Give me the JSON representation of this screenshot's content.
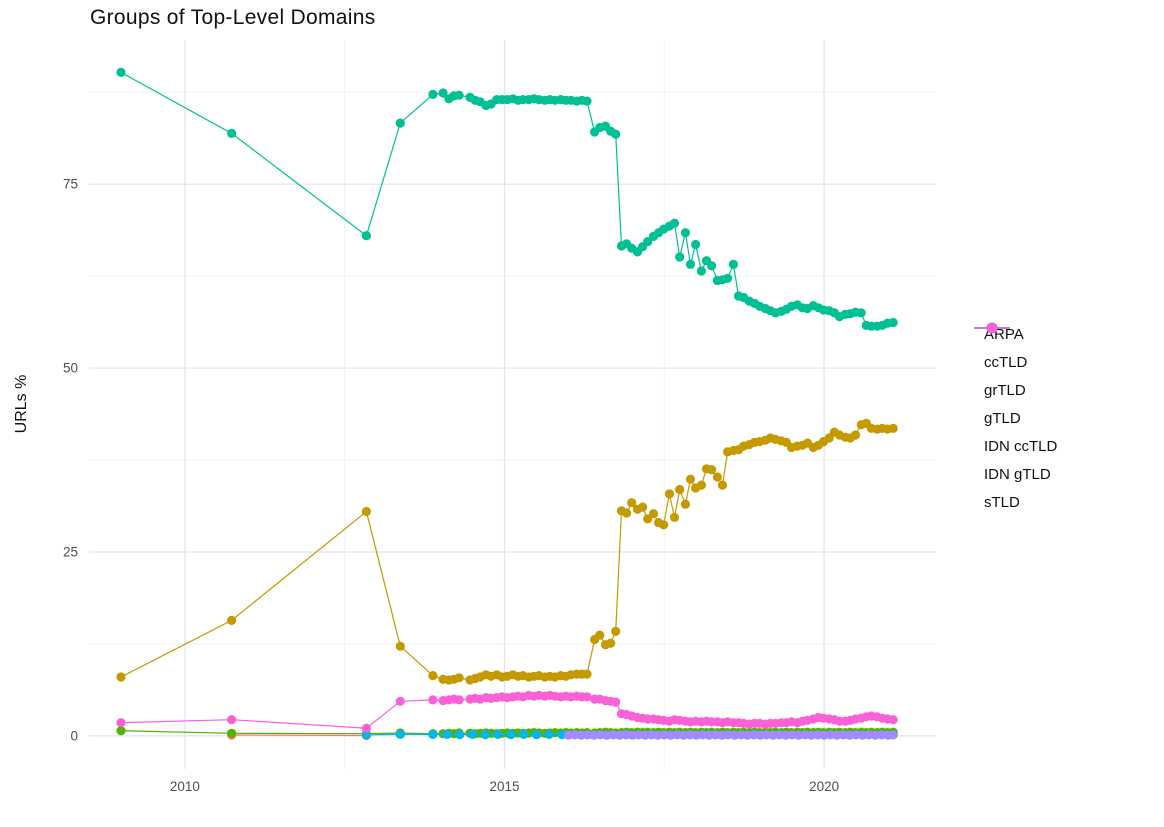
{
  "header": {
    "title": "Groups of Top-Level Domains"
  },
  "chart_data": {
    "type": "line",
    "title": "Groups of Top-Level Domains",
    "xlabel": "",
    "ylabel": "URLs %",
    "xlim": [
      2008.5,
      2021.75
    ],
    "ylim": [
      -4.5,
      94.6
    ],
    "x_ticks": [
      2010,
      2015,
      2020
    ],
    "x_tick_labels": [
      "2010",
      "2015",
      "2020"
    ],
    "x_minor_ticks": [
      2012.5,
      2017.5
    ],
    "y_ticks": [
      0,
      25,
      50,
      75
    ],
    "y_tick_labels": [
      "0",
      "25",
      "50",
      "75"
    ],
    "y_minor_ticks": [
      12.5,
      37.5,
      62.5,
      87.5
    ],
    "grid": "on",
    "legend_position": "right",
    "series": [
      {
        "name": "ARPA",
        "color": "#F8766D",
        "x": [
          2010.73,
          2012.84
        ],
        "y": [
          0.12,
          0.05
        ]
      },
      {
        "name": "ccTLD",
        "color": "#C49A00",
        "x": [
          2009,
          2010.73,
          2012.84,
          2013.37,
          2013.88,
          2014.04,
          2014.13,
          2014.21,
          2014.29,
          2014.46,
          2014.54,
          2014.62,
          2014.71,
          2014.79,
          2014.88,
          2014.96,
          2015.04,
          2015.13,
          2015.21,
          2015.29,
          2015.38,
          2015.46,
          2015.54,
          2015.63,
          2015.71,
          2015.79,
          2015.88,
          2015.96,
          2016.04,
          2016.13,
          2016.21,
          2016.29,
          2016.41,
          2016.49,
          2016.58,
          2016.66,
          2016.74,
          2016.83,
          2016.91,
          2016.99,
          2017.08,
          2017.16,
          2017.24,
          2017.33,
          2017.41,
          2017.49,
          2017.58,
          2017.66,
          2017.74,
          2017.83,
          2017.91,
          2017.99,
          2018.08,
          2018.16,
          2018.24,
          2018.33,
          2018.41,
          2018.49,
          2018.58,
          2018.66,
          2018.74,
          2018.83,
          2018.91,
          2018.99,
          2019.08,
          2019.16,
          2019.24,
          2019.33,
          2019.41,
          2019.49,
          2019.58,
          2019.66,
          2019.74,
          2019.83,
          2019.91,
          2019.99,
          2020.08,
          2020.16,
          2020.24,
          2020.33,
          2020.41,
          2020.49,
          2020.58,
          2020.66,
          2020.74,
          2020.83,
          2020.91,
          2020.99,
          2021.08
        ],
        "y": [
          8.0,
          15.7,
          30.5,
          12.2,
          8.2,
          7.7,
          7.6,
          7.7,
          7.9,
          7.6,
          7.8,
          8.0,
          8.3,
          8.1,
          8.3,
          8.0,
          8.1,
          8.3,
          8.1,
          8.2,
          8.0,
          8.1,
          8.2,
          8.0,
          8.1,
          8.0,
          8.2,
          8.1,
          8.3,
          8.4,
          8.4,
          8.4,
          13.1,
          13.7,
          12.4,
          12.6,
          14.2,
          30.6,
          30.3,
          31.7,
          30.8,
          31.1,
          29.5,
          30.2,
          29.0,
          28.7,
          32.9,
          29.7,
          33.5,
          31.5,
          34.9,
          33.7,
          34.1,
          36.3,
          36.2,
          35.2,
          34.1,
          38.6,
          38.8,
          38.9,
          39.4,
          39.6,
          39.9,
          40.0,
          40.2,
          40.5,
          40.3,
          40.1,
          39.9,
          39.2,
          39.4,
          39.5,
          39.8,
          39.2,
          39.5,
          40.0,
          40.5,
          41.3,
          40.9,
          40.6,
          40.5,
          40.9,
          42.3,
          42.5,
          41.8,
          41.7,
          41.8,
          41.7,
          41.8
        ]
      },
      {
        "name": "grTLD",
        "color": "#53B400",
        "x": [
          2009,
          2010.73,
          2012.84,
          2013.37,
          2013.88,
          2014.04,
          2014.13,
          2014.21,
          2014.29,
          2014.46,
          2014.54,
          2014.62,
          2014.71,
          2014.79,
          2014.88,
          2014.96,
          2015.04,
          2015.13,
          2015.21,
          2015.29,
          2015.38,
          2015.46,
          2015.54,
          2015.63,
          2015.71,
          2015.79,
          2015.88,
          2015.96,
          2016.04,
          2016.13,
          2016.21,
          2016.29,
          2016.41,
          2016.49,
          2016.58,
          2016.66,
          2016.74,
          2016.83,
          2016.91,
          2016.99,
          2017.08,
          2017.16,
          2017.24,
          2017.33,
          2017.41,
          2017.49,
          2017.58,
          2017.66,
          2017.74,
          2017.83,
          2017.91,
          2017.99,
          2018.08,
          2018.16,
          2018.24,
          2018.33,
          2018.41,
          2018.49,
          2018.58,
          2018.66,
          2018.74,
          2018.83,
          2018.91,
          2018.99,
          2019.08,
          2019.16,
          2019.24,
          2019.33,
          2019.41,
          2019.49,
          2019.58,
          2019.66,
          2019.74,
          2019.83,
          2019.91,
          2019.99,
          2020.08,
          2020.16,
          2020.24,
          2020.33,
          2020.41,
          2020.49,
          2020.58,
          2020.66,
          2020.74,
          2020.83,
          2020.91,
          2020.99,
          2021.08
        ],
        "y": [
          0.7,
          0.35,
          0.3,
          0.4,
          0.3,
          0.3,
          0.35,
          0.3,
          0.4,
          0.35,
          0.3,
          0.35,
          0.4,
          0.35,
          0.3,
          0.35,
          0.4,
          0.35,
          0.4,
          0.35,
          0.4,
          0.45,
          0.4,
          0.35,
          0.4,
          0.45,
          0.4,
          0.45,
          0.4,
          0.45,
          0.4,
          0.45,
          0.4,
          0.45,
          0.5,
          0.45,
          0.4,
          0.45,
          0.5,
          0.45,
          0.5,
          0.45,
          0.5,
          0.45,
          0.5,
          0.45,
          0.5,
          0.45,
          0.5,
          0.45,
          0.5,
          0.45,
          0.5,
          0.45,
          0.5,
          0.45,
          0.5,
          0.45,
          0.5,
          0.45,
          0.5,
          0.45,
          0.5,
          0.45,
          0.5,
          0.45,
          0.5,
          0.45,
          0.5,
          0.45,
          0.5,
          0.45,
          0.5,
          0.45,
          0.5,
          0.45,
          0.5,
          0.45,
          0.5,
          0.45,
          0.5,
          0.45,
          0.5,
          0.45,
          0.5,
          0.45,
          0.5,
          0.45,
          0.5
        ]
      },
      {
        "name": "gTLD",
        "color": "#00C094",
        "x": [
          2009,
          2010.73,
          2012.84,
          2013.37,
          2013.88,
          2014.04,
          2014.13,
          2014.21,
          2014.29,
          2014.46,
          2014.54,
          2014.62,
          2014.71,
          2014.79,
          2014.88,
          2014.96,
          2015.04,
          2015.13,
          2015.21,
          2015.29,
          2015.38,
          2015.46,
          2015.54,
          2015.63,
          2015.71,
          2015.79,
          2015.88,
          2015.96,
          2016.04,
          2016.13,
          2016.21,
          2016.29,
          2016.41,
          2016.49,
          2016.58,
          2016.66,
          2016.74,
          2016.83,
          2016.91,
          2016.99,
          2017.08,
          2017.16,
          2017.24,
          2017.33,
          2017.41,
          2017.49,
          2017.58,
          2017.66,
          2017.74,
          2017.83,
          2017.91,
          2017.99,
          2018.08,
          2018.16,
          2018.24,
          2018.33,
          2018.41,
          2018.49,
          2018.58,
          2018.66,
          2018.74,
          2018.83,
          2018.91,
          2018.99,
          2019.08,
          2019.16,
          2019.24,
          2019.33,
          2019.41,
          2019.49,
          2019.58,
          2019.66,
          2019.74,
          2019.83,
          2019.91,
          2019.99,
          2020.08,
          2020.16,
          2020.24,
          2020.33,
          2020.41,
          2020.49,
          2020.58,
          2020.66,
          2020.74,
          2020.83,
          2020.91,
          2020.99,
          2021.08
        ],
        "y": [
          90.2,
          81.9,
          68.0,
          83.3,
          87.2,
          87.4,
          86.6,
          87.0,
          87.1,
          86.8,
          86.4,
          86.2,
          85.7,
          85.9,
          86.5,
          86.5,
          86.5,
          86.6,
          86.4,
          86.5,
          86.5,
          86.6,
          86.5,
          86.4,
          86.5,
          86.4,
          86.5,
          86.4,
          86.4,
          86.3,
          86.4,
          86.3,
          82.1,
          82.7,
          82.9,
          82.2,
          81.8,
          66.6,
          66.9,
          66.3,
          65.8,
          66.5,
          67.2,
          67.9,
          68.4,
          68.9,
          69.3,
          69.7,
          65.1,
          68.4,
          64.1,
          66.8,
          63.2,
          64.6,
          63.9,
          61.9,
          62.0,
          62.2,
          64.1,
          59.8,
          59.6,
          59.1,
          58.8,
          58.4,
          58.1,
          57.8,
          57.5,
          57.7,
          58.0,
          58.4,
          58.6,
          58.2,
          58.1,
          58.5,
          58.2,
          57.9,
          57.8,
          57.5,
          57.0,
          57.3,
          57.4,
          57.6,
          57.5,
          55.8,
          55.7,
          55.7,
          55.8,
          56.1,
          56.2
        ]
      },
      {
        "name": "IDN ccTLD",
        "color": "#00B6EB",
        "x": [
          2012.84,
          2013.37,
          2013.88,
          2014.1,
          2014.3,
          2014.5,
          2014.7,
          2014.9,
          2015.1,
          2015.3,
          2015.5,
          2015.7,
          2015.9,
          2016.1,
          2016.3,
          2016.5,
          2016.7,
          2016.9,
          2017.1,
          2017.3,
          2017.5,
          2017.7,
          2017.9,
          2018.1,
          2018.3,
          2018.5,
          2018.7,
          2018.9,
          2019.1,
          2019.3,
          2019.5,
          2019.7,
          2019.9,
          2020.1,
          2020.3,
          2020.5,
          2020.7,
          2020.9,
          2021.08
        ],
        "y": [
          0.15,
          0.2,
          0.2,
          0.2,
          0.18,
          0.2,
          0.18,
          0.2,
          0.18,
          0.2,
          0.18,
          0.2,
          0.18,
          0.2,
          0.18,
          0.2,
          0.18,
          0.2,
          0.18,
          0.2,
          0.18,
          0.2,
          0.18,
          0.2,
          0.18,
          0.2,
          0.18,
          0.2,
          0.18,
          0.2,
          0.18,
          0.2,
          0.18,
          0.2,
          0.18,
          0.2,
          0.18,
          0.2,
          0.18
        ]
      },
      {
        "name": "IDN gTLD",
        "color": "#A58AFF",
        "x": [
          2016.0,
          2016.1,
          2016.2,
          2016.3,
          2016.4,
          2016.5,
          2016.6,
          2016.7,
          2016.8,
          2016.9,
          2017.0,
          2017.1,
          2017.2,
          2017.3,
          2017.4,
          2017.5,
          2017.6,
          2017.7,
          2017.8,
          2017.9,
          2018.0,
          2018.1,
          2018.2,
          2018.3,
          2018.4,
          2018.5,
          2018.6,
          2018.7,
          2018.8,
          2018.9,
          2019.0,
          2019.1,
          2019.2,
          2019.3,
          2019.4,
          2019.5,
          2019.6,
          2019.7,
          2019.8,
          2019.9,
          2020.0,
          2020.1,
          2020.2,
          2020.3,
          2020.4,
          2020.5,
          2020.6,
          2020.7,
          2020.8,
          2020.9,
          2021.0,
          2021.08
        ],
        "y": [
          0.1,
          0.13,
          0.1,
          0.13,
          0.1,
          0.13,
          0.1,
          0.13,
          0.1,
          0.13,
          0.1,
          0.13,
          0.1,
          0.13,
          0.1,
          0.13,
          0.1,
          0.13,
          0.1,
          0.13,
          0.1,
          0.13,
          0.1,
          0.13,
          0.1,
          0.13,
          0.1,
          0.13,
          0.1,
          0.13,
          0.1,
          0.13,
          0.1,
          0.13,
          0.1,
          0.13,
          0.1,
          0.13,
          0.1,
          0.13,
          0.1,
          0.13,
          0.1,
          0.13,
          0.1,
          0.13,
          0.1,
          0.13,
          0.1,
          0.13,
          0.1,
          0.13
        ]
      },
      {
        "name": "sTLD",
        "color": "#FB61D7",
        "x": [
          2009,
          2010.73,
          2012.84,
          2013.37,
          2013.88,
          2014.04,
          2014.13,
          2014.21,
          2014.29,
          2014.46,
          2014.54,
          2014.62,
          2014.71,
          2014.79,
          2014.88,
          2014.96,
          2015.04,
          2015.13,
          2015.21,
          2015.29,
          2015.38,
          2015.46,
          2015.54,
          2015.63,
          2015.71,
          2015.79,
          2015.88,
          2015.96,
          2016.04,
          2016.13,
          2016.21,
          2016.29,
          2016.41,
          2016.49,
          2016.58,
          2016.66,
          2016.74,
          2016.83,
          2016.91,
          2016.99,
          2017.08,
          2017.16,
          2017.24,
          2017.33,
          2017.41,
          2017.49,
          2017.58,
          2017.66,
          2017.74,
          2017.83,
          2017.91,
          2017.99,
          2018.08,
          2018.16,
          2018.24,
          2018.33,
          2018.41,
          2018.49,
          2018.58,
          2018.66,
          2018.74,
          2018.83,
          2018.91,
          2018.99,
          2019.08,
          2019.16,
          2019.24,
          2019.33,
          2019.41,
          2019.49,
          2019.58,
          2019.66,
          2019.74,
          2019.83,
          2019.91,
          2019.99,
          2020.08,
          2020.16,
          2020.24,
          2020.33,
          2020.41,
          2020.49,
          2020.58,
          2020.66,
          2020.74,
          2020.83,
          2020.91,
          2020.99,
          2021.08
        ],
        "y": [
          1.8,
          2.2,
          1.05,
          4.7,
          4.9,
          4.8,
          4.9,
          5.0,
          4.9,
          5.0,
          5.1,
          5.0,
          5.2,
          5.1,
          5.2,
          5.3,
          5.2,
          5.3,
          5.4,
          5.3,
          5.5,
          5.4,
          5.5,
          5.4,
          5.5,
          5.4,
          5.3,
          5.4,
          5.3,
          5.4,
          5.3,
          5.3,
          5.0,
          5.0,
          4.8,
          4.7,
          4.6,
          3.0,
          2.9,
          2.7,
          2.5,
          2.4,
          2.3,
          2.3,
          2.2,
          2.1,
          2.0,
          2.2,
          2.1,
          2.0,
          1.9,
          2.0,
          1.9,
          2.0,
          1.9,
          1.9,
          1.8,
          1.9,
          1.8,
          1.8,
          1.7,
          1.6,
          1.7,
          1.7,
          1.6,
          1.7,
          1.7,
          1.8,
          1.8,
          1.9,
          1.8,
          2.0,
          2.1,
          2.3,
          2.5,
          2.4,
          2.3,
          2.2,
          2.0,
          2.0,
          2.1,
          2.3,
          2.4,
          2.6,
          2.7,
          2.6,
          2.4,
          2.3,
          2.2
        ]
      }
    ],
    "style": {
      "major_grid_color": "#E4E4E4",
      "minor_grid_color": "#F2F2F2",
      "background": "#FFFFFF",
      "point_radius": 4.6,
      "line_width": 1.2
    }
  }
}
